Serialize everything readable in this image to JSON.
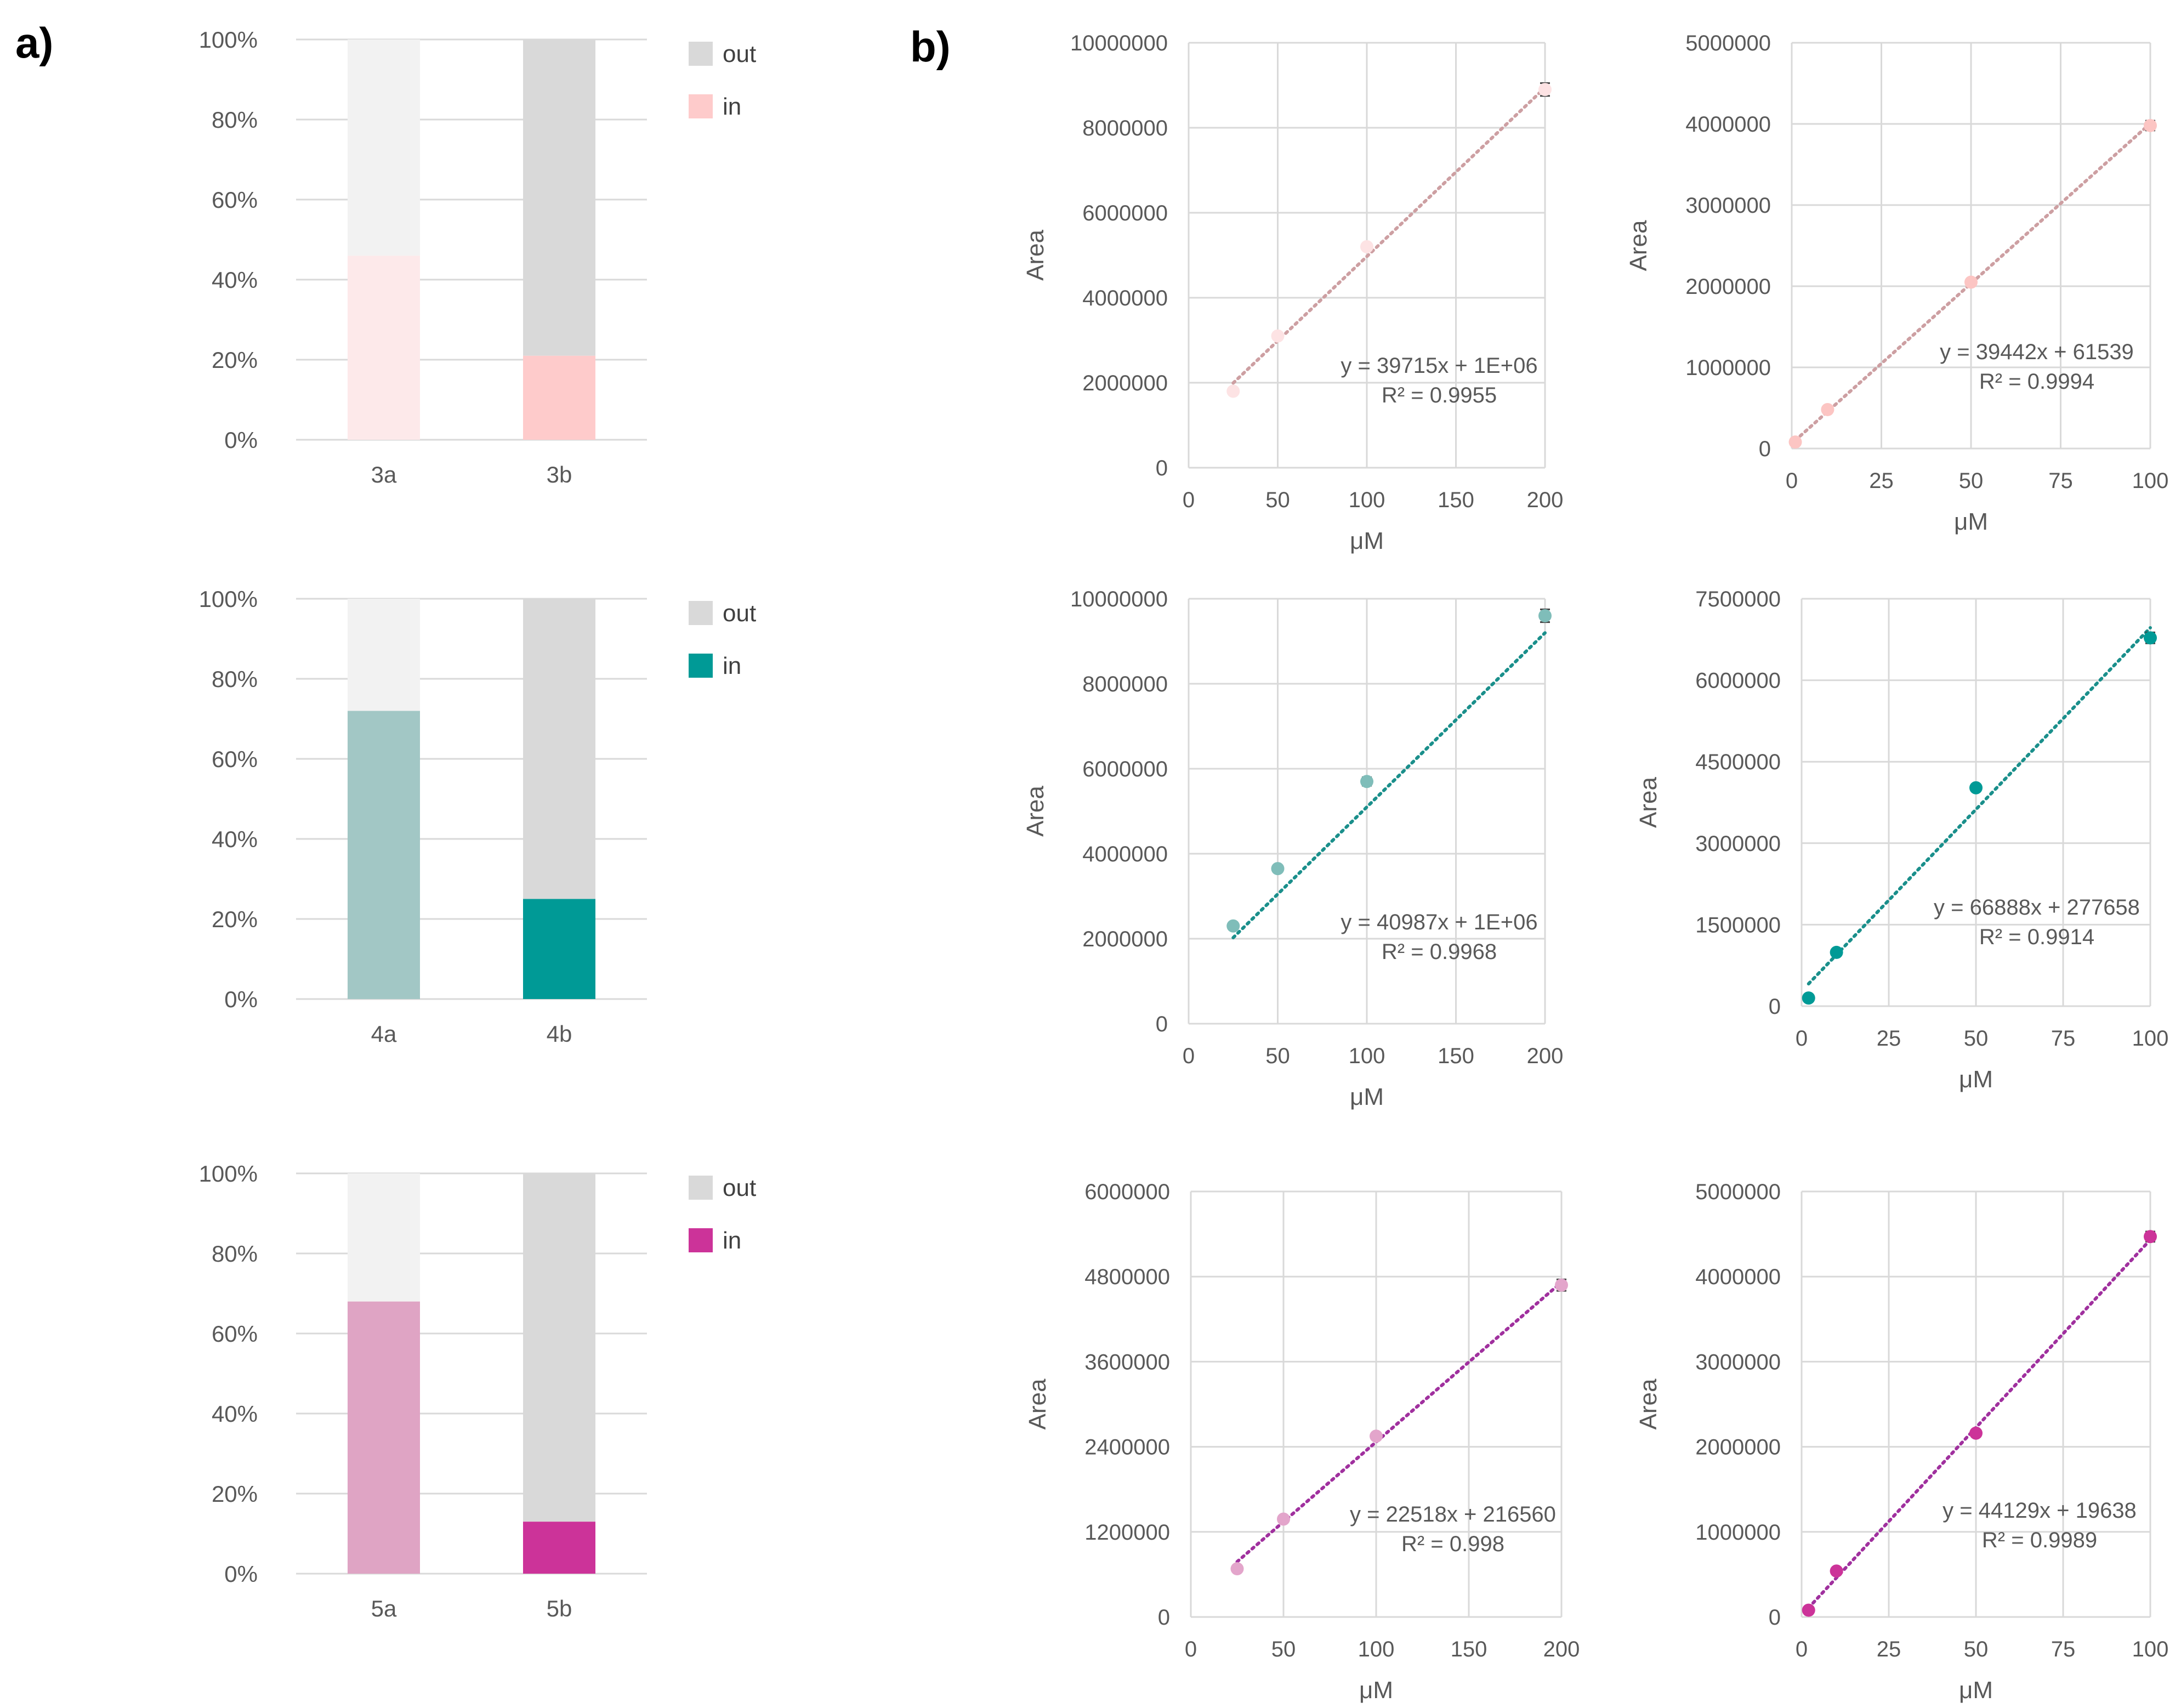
{
  "panels": {
    "a": "a)",
    "b": "b)"
  },
  "chart_data": [
    {
      "type": "bar",
      "stacked": true,
      "id": "bar-3",
      "categories": [
        "3a",
        "3b"
      ],
      "series": [
        {
          "name": "in",
          "values": [
            46,
            21
          ],
          "colors": [
            "#FDE9EA",
            "#FECBCB"
          ]
        },
        {
          "name": "out",
          "values": [
            54,
            79
          ],
          "colors": [
            "#F2F2F2",
            "#D9D9D9"
          ]
        }
      ],
      "ylim": [
        0,
        100
      ],
      "yticks": [
        "0%",
        "20%",
        "40%",
        "60%",
        "80%",
        "100%"
      ],
      "legend": [
        {
          "label": "out",
          "color": "#D9D9D9"
        },
        {
          "label": "in",
          "color": "#FECBCB"
        }
      ],
      "legend_position": "right"
    },
    {
      "type": "bar",
      "stacked": true,
      "id": "bar-4",
      "categories": [
        "4a",
        "4b"
      ],
      "series": [
        {
          "name": "in",
          "values": [
            72,
            25
          ],
          "colors": [
            "#A2C7C5",
            "#009A96"
          ]
        },
        {
          "name": "out",
          "values": [
            28,
            75
          ],
          "colors": [
            "#F2F2F2",
            "#D9D9D9"
          ]
        }
      ],
      "ylim": [
        0,
        100
      ],
      "yticks": [
        "0%",
        "20%",
        "40%",
        "60%",
        "80%",
        "100%"
      ],
      "legend": [
        {
          "label": "out",
          "color": "#D9D9D9"
        },
        {
          "label": "in",
          "color": "#009A96"
        }
      ],
      "legend_position": "right"
    },
    {
      "type": "bar",
      "stacked": true,
      "id": "bar-5",
      "categories": [
        "5a",
        "5b"
      ],
      "series": [
        {
          "name": "in",
          "values": [
            68,
            13
          ],
          "colors": [
            "#DFA4C4",
            "#CC3399"
          ]
        },
        {
          "name": "out",
          "values": [
            32,
            87
          ],
          "colors": [
            "#F2F2F2",
            "#D9D9D9"
          ]
        }
      ],
      "ylim": [
        0,
        100
      ],
      "yticks": [
        "0%",
        "20%",
        "40%",
        "60%",
        "80%",
        "100%"
      ],
      "legend": [
        {
          "label": "out",
          "color": "#D9D9D9"
        },
        {
          "label": "in",
          "color": "#CC3399"
        }
      ],
      "legend_position": "right"
    },
    {
      "type": "scatter",
      "id": "sc-3a",
      "xlabel": "μM",
      "ylabel": "Area",
      "xlim": [
        0,
        200
      ],
      "xticks": [
        0,
        50,
        100,
        150,
        200
      ],
      "ylim": [
        0,
        10000000
      ],
      "yticks": [
        0,
        2000000,
        4000000,
        6000000,
        8000000,
        10000000
      ],
      "x": [
        25,
        50,
        100,
        200
      ],
      "y": [
        1800000,
        3100000,
        5200000,
        8900000
      ],
      "err": [
        0,
        0,
        0,
        150000
      ],
      "trend": {
        "slope": 39715,
        "intercept": 1000000,
        "x_from": 25,
        "x_to": 200
      },
      "equation": "y = 39715x + 1E+06",
      "r2": "R² = 0.9955",
      "point_color": "#FDE3E4",
      "line_color": "#CD9FA2"
    },
    {
      "type": "scatter",
      "id": "sc-3b",
      "xlabel": "μM",
      "ylabel": "Area",
      "xlim": [
        0,
        100
      ],
      "xticks": [
        0,
        25,
        50,
        75,
        100
      ],
      "ylim": [
        0,
        5000000
      ],
      "yticks": [
        0,
        1000000,
        2000000,
        3000000,
        4000000,
        5000000
      ],
      "x": [
        1,
        10,
        50,
        100
      ],
      "y": [
        80000,
        480000,
        2050000,
        3980000
      ],
      "err": [
        0,
        0,
        0,
        60000
      ],
      "trend": {
        "slope": 39442,
        "intercept": 61539,
        "x_from": 1,
        "x_to": 100
      },
      "equation": "y = 39442x + 61539",
      "r2": "R² = 0.9994",
      "point_color": "#FCC5C3",
      "line_color": "#CD9FA2"
    },
    {
      "type": "scatter",
      "id": "sc-4a",
      "xlabel": "μM",
      "ylabel": "Area",
      "xlim": [
        0,
        200
      ],
      "xticks": [
        0,
        50,
        100,
        150,
        200
      ],
      "ylim": [
        0,
        10000000
      ],
      "yticks": [
        0,
        2000000,
        4000000,
        6000000,
        8000000,
        10000000
      ],
      "x": [
        25,
        50,
        100,
        200
      ],
      "y": [
        2300000,
        3650000,
        5700000,
        9600000
      ],
      "err": [
        0,
        0,
        100000,
        150000
      ],
      "trend": {
        "slope": 40987,
        "intercept": 1000000,
        "x_from": 25,
        "x_to": 200
      },
      "equation": "y = 40987x + 1E+06",
      "r2": "R² = 0.9968",
      "point_color": "#7FBDB9",
      "line_color": "#1A8F8B"
    },
    {
      "type": "scatter",
      "id": "sc-4b",
      "xlabel": "μM",
      "ylabel": "Area",
      "xlim": [
        0,
        100
      ],
      "xticks": [
        0,
        25,
        50,
        75,
        100
      ],
      "ylim": [
        0,
        7500000
      ],
      "yticks": [
        0,
        1500000,
        3000000,
        4500000,
        6000000,
        7500000
      ],
      "x": [
        2,
        10,
        50,
        100
      ],
      "y": [
        150000,
        990000,
        4020000,
        6780000
      ],
      "err": [
        0,
        0,
        0,
        100000
      ],
      "trend": {
        "slope": 66888,
        "intercept": 277658,
        "x_from": 2,
        "x_to": 100
      },
      "equation": "y = 66888x + 277658",
      "r2": "R² = 0.9914",
      "point_color": "#009A96",
      "line_color": "#1A8F8B"
    },
    {
      "type": "scatter",
      "id": "sc-5a",
      "xlabel": "μM",
      "ylabel": "Area",
      "xlim": [
        0,
        200
      ],
      "xticks": [
        0,
        50,
        100,
        150,
        200
      ],
      "ylim": [
        0,
        6000000
      ],
      "yticks": [
        0,
        1200000,
        2400000,
        3600000,
        4800000,
        6000000
      ],
      "x": [
        25,
        50,
        100,
        200
      ],
      "y": [
        680000,
        1380000,
        2550000,
        4680000
      ],
      "err": [
        0,
        0,
        0,
        80000
      ],
      "trend": {
        "slope": 22518,
        "intercept": 216560,
        "x_from": 25,
        "x_to": 200
      },
      "equation": "y = 22518x + 216560",
      "r2": "R² = 0.998",
      "point_color": "#E3A5CB",
      "line_color": "#A0309E"
    },
    {
      "type": "scatter",
      "id": "sc-5b",
      "xlabel": "μM",
      "ylabel": "Area",
      "xlim": [
        0,
        100
      ],
      "xticks": [
        0,
        25,
        50,
        75,
        100
      ],
      "ylim": [
        0,
        5000000
      ],
      "yticks": [
        0,
        1000000,
        2000000,
        3000000,
        4000000,
        5000000
      ],
      "x": [
        2,
        10,
        50,
        100
      ],
      "y": [
        80000,
        540000,
        2160000,
        4470000
      ],
      "err": [
        0,
        0,
        0,
        60000
      ],
      "trend": {
        "slope": 44129,
        "intercept": 19638,
        "x_from": 2,
        "x_to": 100
      },
      "equation": "y = 44129x + 19638",
      "r2": "R² = 0.9989",
      "point_color": "#CC3399",
      "line_color": "#A0309E"
    }
  ]
}
